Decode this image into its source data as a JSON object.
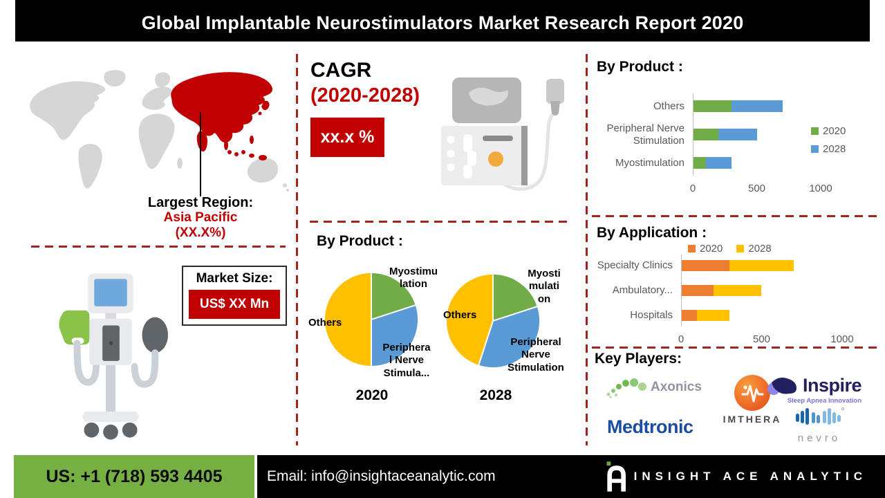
{
  "header": {
    "title": "Global Implantable Neurostimulators Market Research Report 2020"
  },
  "left": {
    "largest_region": {
      "label": "Largest Region:",
      "region": "Asia Pacific",
      "share": "(XX.X%)"
    },
    "market_size": {
      "label": "Market Size:",
      "value": "US$ XX Mn"
    }
  },
  "middle": {
    "cagr_label": "CAGR",
    "cagr_period": "(2020-2028)",
    "cagr_value": "xx.x %",
    "pie_section_title": "By Product :"
  },
  "right": {
    "product_title": "By Product :",
    "application_title": "By Application :",
    "key_players_title": "Key Players:"
  },
  "accents": {
    "dark_red": "#C00000",
    "dash_red": "#A3231D",
    "map_highlight": "#C00000",
    "map_base": "#D6D6D6",
    "footer_green": "#76B043"
  },
  "chart_data": [
    {
      "id": "product-bars",
      "type": "bar",
      "orientation": "horizontal",
      "stacked": true,
      "title": "By Product :",
      "categories": [
        "Others",
        "Peripheral Nerve Stimulation",
        "Myostimulation"
      ],
      "series": [
        {
          "name": "2020",
          "color": "#70AD47",
          "values": [
            300,
            200,
            100
          ]
        },
        {
          "name": "2028",
          "color": "#5B9BD5",
          "values": [
            400,
            300,
            200
          ]
        }
      ],
      "xlim": [
        0,
        1000
      ],
      "xticks": [
        0,
        500,
        1000
      ],
      "grid": false,
      "legend_position": "right"
    },
    {
      "id": "application-bars",
      "type": "bar",
      "orientation": "horizontal",
      "stacked": true,
      "title": "By Application :",
      "categories": [
        "Specialty Clinics",
        "Ambulatory...",
        "Hospitals"
      ],
      "series": [
        {
          "name": "2020",
          "color": "#ED7D31",
          "values": [
            300,
            200,
            100
          ]
        },
        {
          "name": "2028",
          "color": "#FFC000",
          "values": [
            400,
            300,
            200
          ]
        }
      ],
      "xlim": [
        0,
        1000
      ],
      "xticks": [
        0,
        500,
        1000
      ],
      "grid": false,
      "legend_position": "top"
    },
    {
      "id": "product-pie-2020",
      "type": "pie",
      "title": "2020",
      "labels": [
        "Myostimulation",
        "Peripheral Nerve Stimulation",
        "Others"
      ],
      "values": [
        20,
        30,
        50
      ],
      "colors": [
        "#70AD47",
        "#5B9BD5",
        "#FFC000"
      ],
      "callouts": [
        "Myostimu\nlation",
        "Periphera\nl Nerve\nStimula...",
        "Others"
      ]
    },
    {
      "id": "product-pie-2028",
      "type": "pie",
      "title": "2028",
      "labels": [
        "Myostimulation",
        "Peripheral Nerve Stimulation",
        "Others"
      ],
      "values": [
        20,
        35,
        45
      ],
      "colors": [
        "#70AD47",
        "#5B9BD5",
        "#FFC000"
      ],
      "callouts": [
        "Myosti\nmulati\non",
        "Peripheral\nNerve\nStimulation",
        "Others"
      ]
    }
  ],
  "key_players": {
    "axonics": "Axonics",
    "imthera": "ImThera",
    "imthera_wordmark": "IMTHERA",
    "inspire": "Inspire",
    "inspire_tagline": "Sleep Apnea Innovation",
    "medtronic": "Medtronic",
    "nevro": "nevro"
  },
  "footer": {
    "phone": "US: +1 (718) 593 4405",
    "email": "Email: info@insightaceanalytic.com",
    "brand": "INSIGHT ACE ANALYTIC"
  }
}
